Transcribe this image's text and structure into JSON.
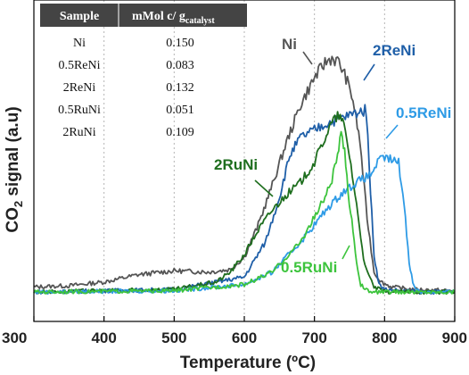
{
  "chart_data": {
    "type": "line",
    "xlabel": "Temperature (ºC)",
    "ylabel": "CO2 signal (a.u)",
    "xlim": [
      300,
      900
    ],
    "xticks": [
      300,
      400,
      500,
      600,
      700,
      800,
      900
    ],
    "grid": "vertical dotted lines at 400, 500, 600, 700, 800",
    "series": [
      {
        "name": "Ni",
        "color": "#555555",
        "x": [
          300,
          350,
          400,
          450,
          500,
          550,
          580,
          600,
          620,
          640,
          660,
          680,
          700,
          715,
          725,
          735,
          745,
          755,
          765,
          775,
          785,
          795,
          810,
          840,
          900
        ],
        "y": [
          0.02,
          0.025,
          0.04,
          0.07,
          0.085,
          0.08,
          0.09,
          0.14,
          0.27,
          0.43,
          0.6,
          0.75,
          0.86,
          0.92,
          0.94,
          0.92,
          0.86,
          0.77,
          0.6,
          0.3,
          0.08,
          0.04,
          0.02,
          0.01,
          0.005
        ]
      },
      {
        "name": "2ReNi",
        "color": "#1f5fa8",
        "x": [
          300,
          500,
          600,
          630,
          650,
          665,
          680,
          700,
          720,
          740,
          760,
          772,
          776,
          780,
          785,
          792,
          800,
          850,
          900
        ],
        "y": [
          0.0,
          0.01,
          0.06,
          0.2,
          0.38,
          0.55,
          0.62,
          0.65,
          0.68,
          0.7,
          0.72,
          0.73,
          0.65,
          0.4,
          0.15,
          0.03,
          0.01,
          0.0,
          0.0
        ]
      },
      {
        "name": "0.5ReNi",
        "color": "#2e9be6",
        "x": [
          300,
          500,
          600,
          640,
          680,
          700,
          720,
          740,
          760,
          780,
          790,
          800,
          810,
          820,
          828,
          835,
          842,
          850,
          900
        ],
        "y": [
          0.0,
          0.005,
          0.03,
          0.08,
          0.2,
          0.27,
          0.34,
          0.4,
          0.44,
          0.47,
          0.52,
          0.54,
          0.53,
          0.52,
          0.35,
          0.12,
          0.02,
          0.0,
          0.0
        ]
      },
      {
        "name": "2RuNi",
        "color": "#1e6e1e",
        "x": [
          300,
          500,
          560,
          580,
          600,
          620,
          640,
          660,
          680,
          700,
          715,
          725,
          735,
          742,
          750,
          760,
          772,
          785,
          800,
          900
        ],
        "y": [
          0.0,
          0.01,
          0.04,
          0.08,
          0.15,
          0.25,
          0.33,
          0.39,
          0.44,
          0.52,
          0.62,
          0.68,
          0.71,
          0.67,
          0.55,
          0.35,
          0.1,
          0.02,
          0.0,
          0.0
        ]
      },
      {
        "name": "0.5RuNi",
        "color": "#3dc43d",
        "x": [
          300,
          500,
          600,
          640,
          680,
          700,
          715,
          725,
          733,
          738,
          743,
          748,
          755,
          760,
          766,
          772,
          780,
          800,
          900
        ],
        "y": [
          0.0,
          0.005,
          0.03,
          0.08,
          0.2,
          0.3,
          0.38,
          0.45,
          0.55,
          0.63,
          0.56,
          0.4,
          0.25,
          0.12,
          0.03,
          0.01,
          0.0,
          0.0,
          0.0
        ]
      }
    ],
    "series_label_text": [
      "Ni",
      "2ReNi",
      "0.5ReNi",
      "2RuNi",
      "0.5RuNi"
    ],
    "table": {
      "headers": [
        "Sample",
        "mMol c/ g",
        "catalyst"
      ],
      "rows": [
        [
          "Ni",
          "0.150"
        ],
        [
          "0.5ReNi",
          "0.083"
        ],
        [
          "2ReNi",
          "0.132"
        ],
        [
          "0.5RuNi",
          "0.051"
        ],
        [
          "2RuNi",
          "0.109"
        ]
      ]
    }
  }
}
